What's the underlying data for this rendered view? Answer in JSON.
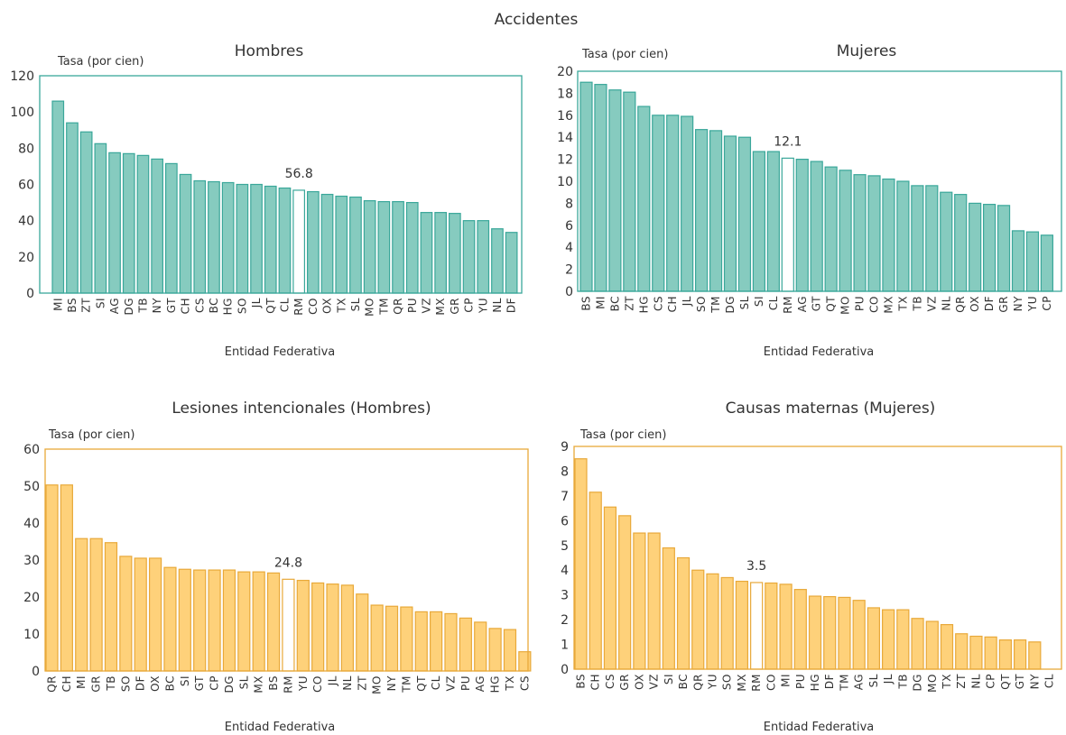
{
  "title": "Accidentes",
  "charts": {
    "hombres": {
      "title": "Hombres",
      "unit_label": "Tasa (por cien)",
      "xlabel": "Entidad Federativa",
      "highlight_label": "56.8"
    },
    "mujeres": {
      "title": "Mujeres",
      "unit_label": "Tasa (por cien)",
      "xlabel": "Entidad Federativa",
      "highlight_label": "12.1"
    },
    "lesiones": {
      "title": "Lesiones intencionales (Hombres)",
      "unit_label": "Tasa (por cien)",
      "xlabel": "Entidad Federativa",
      "highlight_label": "24.8"
    },
    "maternas": {
      "title": "Causas maternas (Mujeres)",
      "unit_label": "Tasa (por cien)",
      "xlabel": "Entidad Federativa",
      "highlight_label": "3.5"
    }
  },
  "colors": {
    "teal_fill": "#86cbbf",
    "teal_stroke": "#3aa79a",
    "yellow_fill": "#fed17a",
    "yellow_stroke": "#e8a93a",
    "highlight_fill": "#ffffff"
  },
  "chart_data": [
    {
      "id": "hombres",
      "type": "bar",
      "title": "Hombres",
      "ylabel": "Tasa (por cien)",
      "xlabel": "Entidad Federativa",
      "ylim": [
        0,
        120
      ],
      "yticks": [
        0,
        20,
        40,
        60,
        80,
        100,
        120
      ],
      "highlight": "RM",
      "categories": [
        "MI",
        "BS",
        "ZT",
        "SI",
        "AG",
        "DG",
        "TB",
        "NY",
        "GT",
        "CH",
        "CS",
        "BC",
        "HG",
        "SO",
        "JL",
        "QT",
        "CL",
        "RM",
        "CO",
        "OX",
        "TX",
        "SL",
        "MO",
        "TM",
        "QR",
        "PU",
        "VZ",
        "MX",
        "GR",
        "CP",
        "YU",
        "NL",
        "DF"
      ],
      "values": [
        106,
        94,
        89,
        82.5,
        77.5,
        77,
        76,
        74,
        71.5,
        65.5,
        62,
        61.5,
        61,
        60,
        60,
        59,
        58,
        56.8,
        56,
        54.5,
        53.5,
        53,
        51,
        50.5,
        50.5,
        50,
        44.5,
        44.5,
        44,
        40,
        40,
        35.5,
        33.5
      ]
    },
    {
      "id": "mujeres",
      "type": "bar",
      "title": "Mujeres",
      "ylabel": "Tasa (por cien)",
      "xlabel": "Entidad Federativa",
      "ylim": [
        0,
        20
      ],
      "yticks": [
        0,
        2,
        4,
        6,
        8,
        10,
        12,
        14,
        16,
        18,
        20
      ],
      "highlight": "RM",
      "categories": [
        "BS",
        "MI",
        "BC",
        "ZT",
        "HG",
        "CS",
        "CH",
        "JL",
        "SO",
        "TM",
        "DG",
        "SL",
        "SI",
        "CL",
        "RM",
        "AG",
        "GT",
        "QT",
        "MO",
        "PU",
        "CO",
        "MX",
        "TX",
        "TB",
        "VZ",
        "NL",
        "QR",
        "OX",
        "DF",
        "GR",
        "NY",
        "YU",
        "CP"
      ],
      "values": [
        19,
        18.8,
        18.3,
        18.1,
        16.8,
        16,
        16,
        15.9,
        14.7,
        14.6,
        14.1,
        14,
        12.7,
        12.7,
        12.1,
        12,
        11.8,
        11.3,
        11,
        10.6,
        10.5,
        10.2,
        10,
        9.6,
        9.6,
        9,
        8.8,
        8,
        7.9,
        7.8,
        5.5,
        5.4,
        5.1
      ]
    },
    {
      "id": "lesiones",
      "type": "bar",
      "title": "Lesiones intencionales (Hombres)",
      "ylabel": "Tasa (por cien)",
      "xlabel": "Entidad Federativa",
      "ylim": [
        0,
        60
      ],
      "yticks": [
        0,
        10,
        20,
        30,
        40,
        50,
        60
      ],
      "highlight": "RM",
      "categories": [
        "QR",
        "CH",
        "MI",
        "GR",
        "TB",
        "SO",
        "DF",
        "OX",
        "BC",
        "SI",
        "GT",
        "CP",
        "DG",
        "SL",
        "MX",
        "BS",
        "RM",
        "YU",
        "CO",
        "JL",
        "NL",
        "ZT",
        "MO",
        "NY",
        "TM",
        "QT",
        "CL",
        "VZ",
        "PU",
        "AG",
        "HG",
        "TX",
        "CS"
      ],
      "values": [
        50.3,
        50.3,
        35.8,
        35.8,
        34.7,
        31,
        30.5,
        30.5,
        28,
        27.5,
        27.3,
        27.3,
        27.3,
        26.8,
        26.8,
        26.5,
        24.8,
        24.5,
        23.8,
        23.5,
        23.2,
        20.8,
        17.8,
        17.5,
        17.3,
        16,
        16,
        15.5,
        14.3,
        13.2,
        11.5,
        11.2,
        5.2
      ]
    },
    {
      "id": "maternas",
      "type": "bar",
      "title": "Causas maternas (Mujeres)",
      "ylabel": "Tasa (por cien)",
      "xlabel": "Entidad Federativa",
      "ylim": [
        0,
        9
      ],
      "yticks": [
        0,
        1,
        2,
        3,
        4,
        5,
        6,
        7,
        8,
        9
      ],
      "highlight": "RM",
      "categories": [
        "BS",
        "CH",
        "CS",
        "GR",
        "OX",
        "VZ",
        "SI",
        "BC",
        "QR",
        "YU",
        "SO",
        "MX",
        "RM",
        "CO",
        "MI",
        "PU",
        "HG",
        "DF",
        "TM",
        "AG",
        "SL",
        "JL",
        "TB",
        "DG",
        "MO",
        "TX",
        "ZT",
        "NL",
        "CP",
        "QT",
        "GT",
        "NY",
        "CL"
      ],
      "values": [
        8.5,
        7.15,
        6.55,
        6.2,
        5.5,
        5.5,
        4.9,
        4.5,
        4.0,
        3.85,
        3.7,
        3.55,
        3.5,
        3.48,
        3.43,
        3.22,
        2.95,
        2.93,
        2.9,
        2.78,
        2.48,
        2.4,
        2.4,
        2.05,
        1.93,
        1.8,
        1.43,
        1.33,
        1.3,
        1.18,
        1.18,
        1.1,
        0
      ]
    }
  ]
}
